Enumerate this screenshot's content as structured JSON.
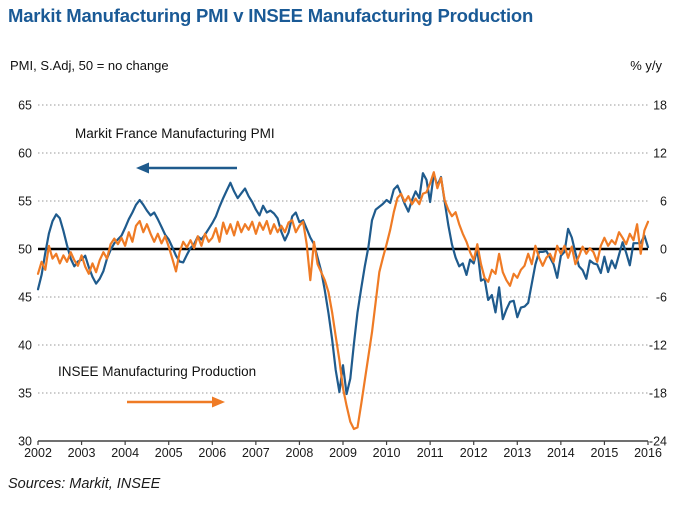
{
  "title": "Markit Manufacturing PMI v INSEE Manufacturing Production",
  "subtitle_left": "PMI, S.Adj, 50 = no change",
  "subtitle_right": "% y/y",
  "source": "Sources: Markit, INSEE",
  "annotations": {
    "pmi_label": "Markit France Manufacturing PMI",
    "insee_label": "INSEE Manufacturing Production"
  },
  "colors": {
    "title": "#1a5a96",
    "pmi_line": "#1f5b8d",
    "insee_line": "#ef7b25",
    "zero_line": "#000000",
    "grid": "#999999",
    "axis": "#404040",
    "text": "#1a1a1a"
  },
  "chart_data": {
    "type": "line",
    "title": "Markit Manufacturing PMI v INSEE Manufacturing Production",
    "x_start_year": 2002,
    "points_per_year": 12,
    "x_labels": [
      "2002",
      "2003",
      "2004",
      "2005",
      "2006",
      "2007",
      "2008",
      "2009",
      "2010",
      "2011",
      "2012",
      "2013",
      "2014",
      "2015",
      "2016"
    ],
    "left_axis": {
      "label": "PMI, S.Adj, 50 = no change",
      "ticks": [
        65,
        60,
        55,
        50,
        45,
        40,
        35,
        30
      ],
      "range": [
        30,
        65
      ],
      "baseline": 50
    },
    "right_axis": {
      "label": "% y/y",
      "ticks": [
        18,
        12,
        6,
        0,
        -6,
        -12,
        -18,
        -24
      ],
      "range": [
        -24,
        18
      ],
      "baseline": 0
    },
    "grid": "dotted-horizontal",
    "legend_position": "in-plot-annotations",
    "series": [
      {
        "name": "Markit France Manufacturing PMI",
        "axis": "left",
        "color": "#1f5b8d",
        "monthly_values": [
          45.8,
          47.3,
          49.6,
          51.6,
          52.9,
          53.6,
          53.2,
          51.9,
          50.4,
          49.0,
          48.2,
          48.7,
          48.9,
          49.3,
          48.1,
          47.1,
          46.4,
          46.9,
          47.7,
          49.0,
          49.9,
          50.6,
          51.0,
          51.4,
          52.2,
          53.1,
          53.8,
          54.6,
          55.1,
          54.6,
          54.0,
          53.5,
          53.8,
          53.1,
          52.3,
          51.5,
          51.0,
          50.2,
          49.3,
          48.7,
          48.6,
          49.4,
          50.1,
          50.5,
          51.3,
          51.0,
          51.5,
          52.1,
          52.7,
          53.4,
          54.4,
          55.3,
          56.1,
          56.9,
          56.0,
          55.3,
          55.8,
          56.3,
          55.5,
          54.9,
          54.1,
          53.5,
          54.5,
          53.8,
          54.0,
          53.7,
          53.2,
          51.8,
          50.9,
          51.7,
          53.4,
          53.8,
          52.8,
          53.0,
          52.1,
          51.2,
          50.5,
          49.1,
          47.7,
          45.7,
          43.3,
          40.6,
          37.4,
          35.1,
          37.9,
          34.9,
          36.5,
          40.1,
          43.4,
          45.9,
          48.2,
          50.2,
          53.0,
          54.1,
          54.4,
          54.7,
          55.1,
          54.8,
          56.2,
          56.6,
          55.7,
          54.7,
          53.9,
          55.1,
          56.0,
          55.3,
          57.9,
          57.2,
          54.9,
          57.8,
          56.6,
          57.5,
          54.9,
          52.5,
          50.5,
          49.1,
          48.2,
          48.5,
          47.3,
          48.9,
          48.5,
          50.0,
          46.7,
          46.9,
          44.7,
          45.2,
          43.4,
          46.0,
          42.7,
          43.7,
          44.5,
          44.6,
          42.9,
          43.9,
          44.0,
          44.4,
          46.4,
          48.4,
          49.7,
          49.7,
          49.8,
          49.1,
          48.4,
          47.0,
          49.3,
          49.7,
          52.1,
          51.2,
          49.6,
          48.2,
          47.8,
          46.9,
          48.8,
          48.5,
          48.4,
          47.5,
          49.2,
          47.6,
          48.8,
          48.0,
          49.4,
          50.7,
          49.6,
          48.3,
          50.6,
          50.6,
          50.6,
          51.4,
          50.2
        ]
      },
      {
        "name": "INSEE Manufacturing Production",
        "axis": "right",
        "color": "#ef7b25",
        "monthly_values": [
          -3.1,
          -1.6,
          -2.6,
          0.4,
          -1.2,
          -0.6,
          -1.8,
          -0.8,
          -1.6,
          -0.4,
          -1.4,
          -2.1,
          -0.8,
          -2.2,
          -3.1,
          -1.8,
          -2.9,
          -1.4,
          -0.4,
          -1.2,
          0.6,
          1.3,
          0.6,
          1.4,
          0.4,
          2.1,
          0.9,
          2.9,
          3.5,
          2.1,
          3.1,
          1.9,
          0.9,
          1.9,
          0.7,
          1.6,
          0.3,
          -1.2,
          -2.8,
          -0.4,
          0.9,
          0.2,
          1.1,
          0.1,
          1.6,
          0.4,
          1.9,
          0.9,
          1.4,
          2.6,
          0.9,
          3.3,
          1.9,
          3.1,
          1.7,
          3.4,
          2.1,
          3.1,
          2.4,
          3.4,
          1.9,
          3.3,
          2.4,
          3.5,
          1.9,
          3.1,
          2.1,
          2.9,
          2.1,
          3.3,
          3.6,
          2.1,
          2.9,
          3.4,
          0.6,
          -3.9,
          0.9,
          -1.9,
          -2.9,
          -3.9,
          -5.4,
          -7.9,
          -10.9,
          -13.9,
          -17.4,
          -19.6,
          -21.6,
          -22.5,
          -22.3,
          -19.4,
          -16.4,
          -13.4,
          -10.4,
          -6.6,
          -2.9,
          -1.1,
          0.6,
          2.4,
          4.6,
          6.4,
          6.9,
          5.9,
          6.6,
          5.6,
          6.3,
          5.6,
          6.9,
          7.1,
          8.2,
          9.6,
          7.6,
          8.9,
          6.1,
          4.9,
          4.1,
          4.6,
          3.1,
          1.9,
          0.9,
          -0.4,
          -1.4,
          0.6,
          -1.9,
          -3.6,
          -4.1,
          -2.6,
          -3.1,
          -0.6,
          -2.9,
          -3.9,
          -4.6,
          -3.1,
          -3.6,
          -2.6,
          -2.1,
          -0.6,
          -1.9,
          0.4,
          -1.1,
          -2.1,
          -1.1,
          -0.6,
          -1.6,
          0.4,
          -0.6,
          0.4,
          -1.1,
          0.3,
          -1.9,
          -0.9,
          0.3,
          -0.6,
          0.1,
          -0.4,
          -1.6,
          0.4,
          1.4,
          0.4,
          1.1,
          0.6,
          2.1,
          1.4,
          0.6,
          1.9,
          1.1,
          3.1,
          -0.6,
          2.3,
          3.4
        ]
      }
    ]
  }
}
